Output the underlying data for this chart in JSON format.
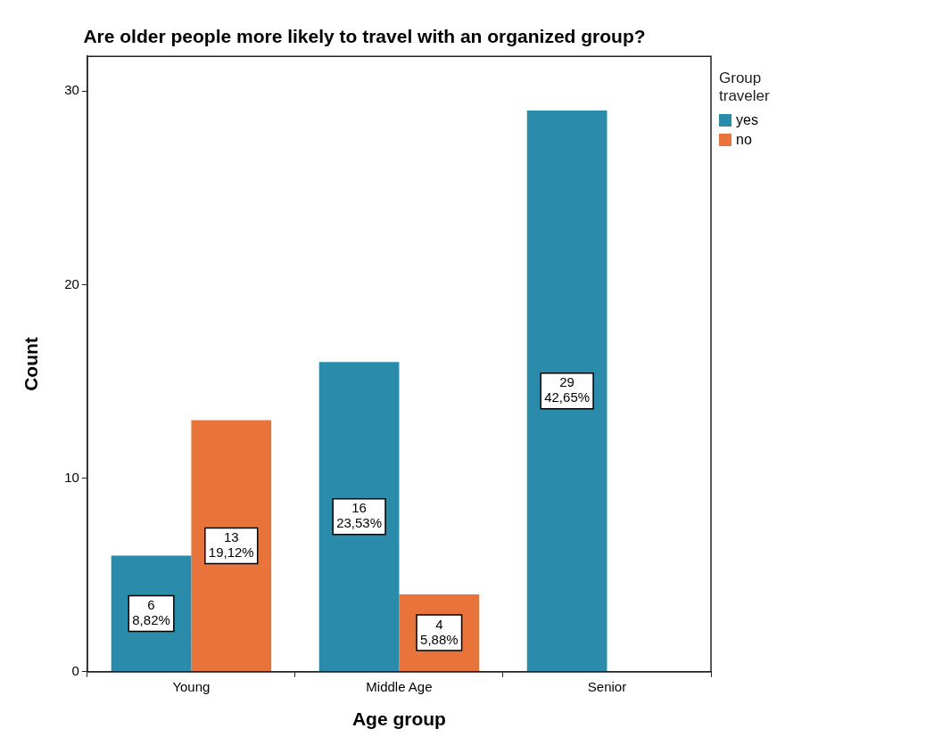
{
  "chart_data": {
    "type": "bar",
    "title": "Are older people more likely to travel with an organized group?",
    "xlabel": "Age group",
    "ylabel": "Count",
    "legend_title": "Group traveler",
    "legend": "top right",
    "grid": false,
    "categories": [
      "Young",
      "Middle Age",
      "Senior"
    ],
    "ylim": [
      0,
      31.8
    ],
    "yticks": [
      0,
      10,
      20,
      30
    ],
    "series": [
      {
        "name": "yes",
        "color": "#2a8bab",
        "values": [
          6,
          16,
          29
        ],
        "value_labels": [
          "6\n8,82%",
          "16\n23,53%",
          "29\n42,65%"
        ]
      },
      {
        "name": "no",
        "color": "#e8743b",
        "values": [
          13,
          4,
          null
        ],
        "value_labels": [
          "13\n19,12%",
          "4\n5,88%",
          null
        ]
      }
    ]
  }
}
